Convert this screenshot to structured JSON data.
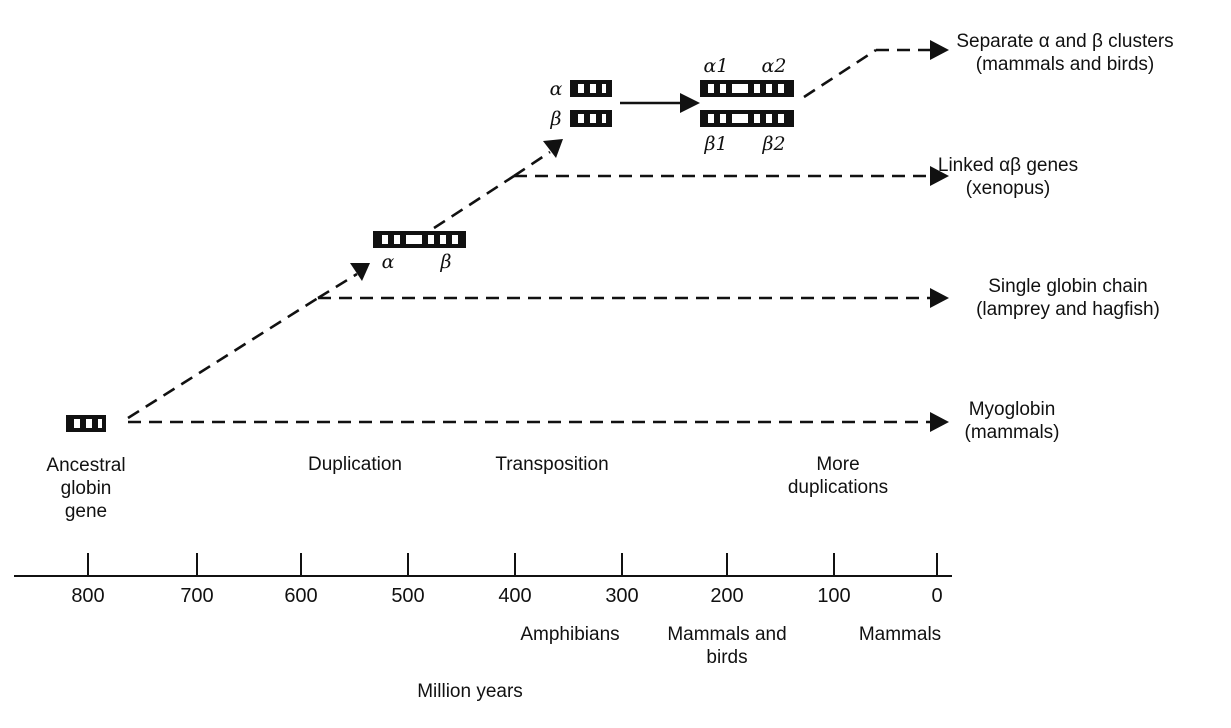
{
  "figure": {
    "outcomes": {
      "separate_clusters": [
        "Separate α and β clusters",
        "(mammals and birds)"
      ],
      "linked_genes": [
        "Linked αβ genes",
        "(xenopus)"
      ],
      "single_chain": [
        "Single globin chain",
        "(lamprey and hagfish)"
      ],
      "myoglobin": [
        "Myoglobin",
        "(mammals)"
      ]
    },
    "events": {
      "ancestral": [
        "Ancestral",
        "globin",
        "gene"
      ],
      "duplication": "Duplication",
      "transposition": "Transposition",
      "more_duplications": [
        "More",
        "duplications"
      ]
    },
    "gene_labels": {
      "alpha": "α",
      "beta": "β",
      "alpha1": "α1",
      "alpha2": "α2",
      "beta1": "β1",
      "beta2": "β2"
    },
    "axis": {
      "ticks": [
        "800",
        "700",
        "600",
        "500",
        "400",
        "300",
        "200",
        "100",
        "0"
      ],
      "groups": {
        "amphibians": "Amphibians",
        "mammals_birds": [
          "Mammals and",
          "birds"
        ],
        "mammals": "Mammals"
      },
      "title": "Million years"
    }
  }
}
